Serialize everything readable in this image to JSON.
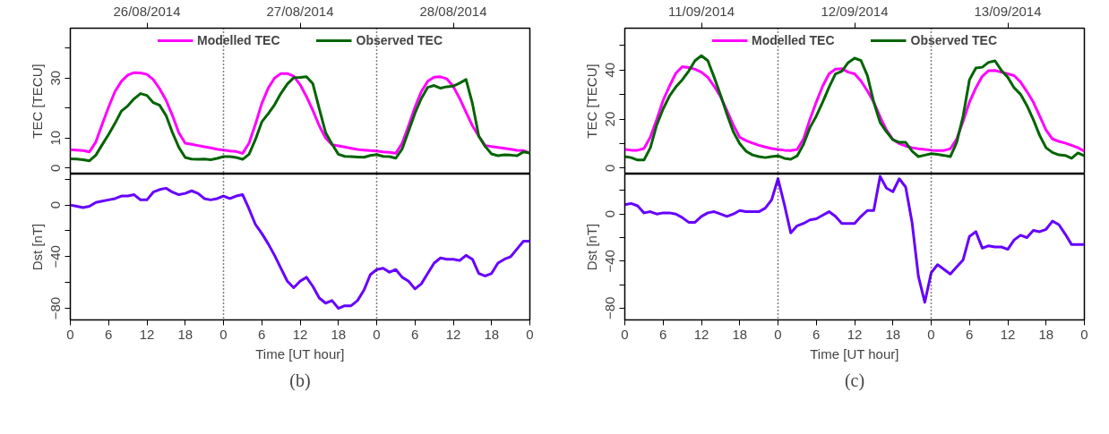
{
  "chart_data": [
    {
      "type": "line",
      "ylabel": "TEC [TECU]",
      "xlim": [
        "2014-08-26T00:00",
        "2014-08-29T00:00"
      ],
      "ylim": [
        -2,
        46.6
      ],
      "x2lim": [
        "2014-08-26T00:00",
        "2014-08-29T00:00"
      ],
      "x2ticks": [
        {
          "value": "2014-08-26T12:00",
          "label": "26/08/2014"
        },
        {
          "value": "2014-08-27T12:00",
          "label": "27/08/2014"
        },
        {
          "value": "2014-08-28T12:00",
          "label": "28/08/2014"
        }
      ],
      "yticks": [
        0,
        10,
        {
          "value": 20,
          "label": null
        },
        30,
        {
          "value": 40,
          "label": null
        }
      ],
      "tick_labels": "y",
      "legend": "top",
      "x": [
        "2014-08-26T00:00",
        "2014-08-26T01:00",
        "2014-08-26T02:00",
        "2014-08-26T03:00",
        "2014-08-26T04:00",
        "2014-08-26T05:00",
        "2014-08-26T06:00",
        "2014-08-26T07:00",
        "2014-08-26T08:00",
        "2014-08-26T09:00",
        "2014-08-26T10:00",
        "2014-08-26T11:00",
        "2014-08-26T12:00",
        "2014-08-26T13:00",
        "2014-08-26T14:00",
        "2014-08-26T15:00",
        "2014-08-26T16:00",
        "2014-08-26T17:00",
        "2014-08-26T18:00",
        "2014-08-26T19:00",
        "2014-08-26T20:00",
        "2014-08-26T21:00",
        "2014-08-26T22:00",
        "2014-08-26T23:00",
        "2014-08-27T00:00",
        "2014-08-27T01:00",
        "2014-08-27T02:00",
        "2014-08-27T03:00",
        "2014-08-27T04:00",
        "2014-08-27T05:00",
        "2014-08-27T06:00",
        "2014-08-27T07:00",
        "2014-08-27T08:00",
        "2014-08-27T09:00",
        "2014-08-27T10:00",
        "2014-08-27T11:00",
        "2014-08-27T12:00",
        "2014-08-27T13:00",
        "2014-08-27T14:00",
        "2014-08-27T15:00",
        "2014-08-27T16:00",
        "2014-08-27T17:00",
        "2014-08-27T18:00",
        "2014-08-27T19:00",
        "2014-08-27T20:00",
        "2014-08-27T21:00",
        "2014-08-27T22:00",
        "2014-08-27T23:00",
        "2014-08-28T00:00",
        "2014-08-28T01:00",
        "2014-08-28T02:00",
        "2014-08-28T03:00",
        "2014-08-28T04:00",
        "2014-08-28T05:00",
        "2014-08-28T06:00",
        "2014-08-28T07:00",
        "2014-08-28T08:00",
        "2014-08-28T09:00",
        "2014-08-28T10:00",
        "2014-08-28T11:00",
        "2014-08-28T12:00",
        "2014-08-28T13:00",
        "2014-08-28T14:00",
        "2014-08-28T15:00",
        "2014-08-28T16:00",
        "2014-08-28T17:00",
        "2014-08-28T18:00",
        "2014-08-28T19:00",
        "2014-08-28T20:00",
        "2014-08-28T21:00",
        "2014-08-28T22:00",
        "2014-08-28T23:00",
        "2014-08-29T00:00"
      ],
      "ref_lines": [
        {
          "axis": "x",
          "value": "2014-08-27T00:00",
          "line_style": "dotted"
        },
        {
          "axis": "x",
          "value": "2014-08-28T00:00",
          "line_style": "dotted"
        }
      ],
      "series": [
        {
          "name": "Modelled TEC",
          "color": "#ff00ff",
          "values": [
            6.1,
            6.0,
            5.8,
            5.4,
            8.7,
            14.6,
            20.3,
            25.5,
            28.9,
            31,
            31.8,
            31.7,
            31.2,
            29.5,
            26.4,
            22.6,
            17.5,
            11.8,
            8.3,
            7.9,
            7.5,
            7.1,
            6.7,
            6.3,
            6.0,
            5.7,
            5.5,
            4.9,
            8.3,
            14.6,
            21.5,
            26.6,
            30,
            31.5,
            31.5,
            30.6,
            27.8,
            23.8,
            19.2,
            14.1,
            10,
            7.8,
            7.4,
            7.0,
            6.6,
            6.2,
            6.0,
            5.8,
            5.7,
            5.4,
            5.2,
            4.9,
            8.3,
            14.1,
            20.3,
            25.5,
            28.9,
            30.3,
            30.4,
            29.7,
            27.2,
            23.2,
            18.6,
            14.1,
            10.6,
            7.5,
            7.2,
            6.9,
            6.6,
            6.3,
            5.9,
            5.8,
            5.0
          ]
        },
        {
          "name": "Observed TEC",
          "color": "#006400",
          "values": [
            3.1,
            3.0,
            2.8,
            2.4,
            4.3,
            7.8,
            11.2,
            14.9,
            19,
            20.7,
            23.1,
            24.8,
            24.2,
            21.8,
            20.9,
            17.5,
            11.8,
            6.9,
            3.5,
            3.0,
            2.9,
            3.0,
            2.8,
            3.2,
            3.8,
            3.8,
            3.5,
            2.9,
            4.6,
            9.5,
            15.4,
            18.1,
            21.1,
            24.9,
            28,
            30.1,
            30.2,
            30.4,
            28.1,
            19.8,
            11.8,
            8.0,
            4.6,
            3.9,
            3.8,
            3.7,
            3.6,
            4.2,
            4.5,
            3.9,
            3.8,
            3.3,
            6.4,
            12.3,
            18.3,
            23.2,
            26.9,
            27.5,
            26.6,
            27.1,
            27.3,
            28.3,
            29.5,
            21.5,
            10.6,
            7.2,
            4.7,
            4.1,
            4.4,
            4.3,
            4.1,
            5.4,
            5.0
          ]
        }
      ]
    },
    {
      "type": "line",
      "ylabel": "Dst [nT]",
      "xlabel": "Time [UT hour]",
      "xlim": [
        "2014-08-26T00:00",
        "2014-08-29T00:00"
      ],
      "ylim": [
        -89,
        24
      ],
      "annotations": [
        "(b)"
      ],
      "xticks": [
        {
          "value": "2014-08-26T00:00",
          "label": "0"
        },
        {
          "value": "2014-08-26T06:00",
          "label": "6"
        },
        {
          "value": "2014-08-26T12:00",
          "label": "12"
        },
        {
          "value": "2014-08-26T18:00",
          "label": "18"
        },
        {
          "value": "2014-08-27T00:00",
          "label": "0"
        },
        {
          "value": "2014-08-27T06:00",
          "label": "6"
        },
        {
          "value": "2014-08-27T12:00",
          "label": "12"
        },
        {
          "value": "2014-08-27T18:00",
          "label": "18"
        },
        {
          "value": "2014-08-28T00:00",
          "label": "0"
        },
        {
          "value": "2014-08-28T06:00",
          "label": "6"
        },
        {
          "value": "2014-08-28T12:00",
          "label": "12"
        },
        {
          "value": "2014-08-28T18:00",
          "label": "18"
        },
        {
          "value": "2014-08-29T00:00",
          "label": "0"
        }
      ],
      "yticks": [
        -80,
        {
          "value": -60,
          "label": null
        },
        -40,
        {
          "value": -20,
          "label": null
        },
        0,
        {
          "value": 20,
          "label": null
        }
      ],
      "x": [
        "2014-08-26T00:00",
        "2014-08-26T01:00",
        "2014-08-26T02:00",
        "2014-08-26T03:00",
        "2014-08-26T04:00",
        "2014-08-26T05:00",
        "2014-08-26T06:00",
        "2014-08-26T07:00",
        "2014-08-26T08:00",
        "2014-08-26T09:00",
        "2014-08-26T10:00",
        "2014-08-26T11:00",
        "2014-08-26T12:00",
        "2014-08-26T13:00",
        "2014-08-26T14:00",
        "2014-08-26T15:00",
        "2014-08-26T16:00",
        "2014-08-26T17:00",
        "2014-08-26T18:00",
        "2014-08-26T19:00",
        "2014-08-26T20:00",
        "2014-08-26T21:00",
        "2014-08-26T22:00",
        "2014-08-26T23:00",
        "2014-08-27T00:00",
        "2014-08-27T01:00",
        "2014-08-27T02:00",
        "2014-08-27T03:00",
        "2014-08-27T04:00",
        "2014-08-27T05:00",
        "2014-08-27T06:00",
        "2014-08-27T07:00",
        "2014-08-27T08:00",
        "2014-08-27T09:00",
        "2014-08-27T10:00",
        "2014-08-27T11:00",
        "2014-08-27T12:00",
        "2014-08-27T13:00",
        "2014-08-27T14:00",
        "2014-08-27T15:00",
        "2014-08-27T16:00",
        "2014-08-27T17:00",
        "2014-08-27T18:00",
        "2014-08-27T19:00",
        "2014-08-27T20:00",
        "2014-08-27T21:00",
        "2014-08-27T22:00",
        "2014-08-27T23:00",
        "2014-08-28T00:00",
        "2014-08-28T01:00",
        "2014-08-28T02:00",
        "2014-08-28T03:00",
        "2014-08-28T04:00",
        "2014-08-28T05:00",
        "2014-08-28T06:00",
        "2014-08-28T07:00",
        "2014-08-28T08:00",
        "2014-08-28T09:00",
        "2014-08-28T10:00",
        "2014-08-28T11:00",
        "2014-08-28T12:00",
        "2014-08-28T13:00",
        "2014-08-28T14:00",
        "2014-08-28T15:00",
        "2014-08-28T16:00",
        "2014-08-28T17:00",
        "2014-08-28T18:00",
        "2014-08-28T19:00",
        "2014-08-28T20:00",
        "2014-08-28T21:00",
        "2014-08-28T22:00",
        "2014-08-28T23:00",
        "2014-08-29T00:00"
      ],
      "ref_lines": [
        {
          "axis": "x",
          "value": "2014-08-27T00:00",
          "line_style": "dotted"
        },
        {
          "axis": "x",
          "value": "2014-08-28T00:00",
          "line_style": "dotted"
        }
      ],
      "series": [
        {
          "color": "#6600ff",
          "values": [
            0,
            -1,
            -2,
            -1,
            2,
            3,
            4,
            5,
            7,
            7,
            8,
            4,
            4,
            10,
            12,
            13,
            10,
            8,
            9,
            11,
            9,
            5,
            4,
            5,
            7,
            5,
            7,
            8,
            -3,
            -15,
            -22,
            -30,
            -39,
            -49,
            -59,
            -64,
            -59,
            -56,
            -63,
            -72,
            -76,
            -74,
            -80,
            -78,
            -78,
            -74,
            -66,
            -54,
            -50,
            -49,
            -52,
            -50,
            -56,
            -59,
            -65,
            -61,
            -53,
            -45,
            -41,
            -42,
            -42,
            -43,
            -39,
            -42,
            -53,
            -55,
            -53,
            -45,
            -42,
            -40,
            -34,
            -28,
            -28
          ]
        }
      ]
    },
    {
      "type": "line",
      "ylabel": "TEC [TECU]",
      "xlim": [
        "2014-09-11T00:00",
        "2014-09-14T00:00"
      ],
      "ylim": [
        -2.4,
        57
      ],
      "x2lim": [
        "2014-09-11T00:00",
        "2014-09-14T00:00"
      ],
      "x2ticks": [
        {
          "value": "2014-09-11T12:00",
          "label": "11/09/2014"
        },
        {
          "value": "2014-09-12T12:00",
          "label": "12/09/2014"
        },
        {
          "value": "2014-09-13T12:00",
          "label": "13/09/2014"
        }
      ],
      "yticks": [
        0,
        {
          "value": 10,
          "label": null
        },
        20,
        {
          "value": 30,
          "label": null
        },
        40,
        {
          "value": 50,
          "label": null
        }
      ],
      "tick_labels": "y",
      "legend": "top",
      "x": [
        "2014-09-11T00:00",
        "2014-09-11T01:00",
        "2014-09-11T02:00",
        "2014-09-11T03:00",
        "2014-09-11T04:00",
        "2014-09-11T05:00",
        "2014-09-11T06:00",
        "2014-09-11T07:00",
        "2014-09-11T08:00",
        "2014-09-11T09:00",
        "2014-09-11T10:00",
        "2014-09-11T11:00",
        "2014-09-11T12:00",
        "2014-09-11T13:00",
        "2014-09-11T14:00",
        "2014-09-11T15:00",
        "2014-09-11T16:00",
        "2014-09-11T17:00",
        "2014-09-11T18:00",
        "2014-09-11T19:00",
        "2014-09-11T20:00",
        "2014-09-11T21:00",
        "2014-09-11T22:00",
        "2014-09-11T23:00",
        "2014-09-12T00:00",
        "2014-09-12T01:00",
        "2014-09-12T02:00",
        "2014-09-12T03:00",
        "2014-09-12T04:00",
        "2014-09-12T05:00",
        "2014-09-12T06:00",
        "2014-09-12T07:00",
        "2014-09-12T08:00",
        "2014-09-12T09:00",
        "2014-09-12T10:00",
        "2014-09-12T11:00",
        "2014-09-12T12:00",
        "2014-09-12T13:00",
        "2014-09-12T14:00",
        "2014-09-12T15:00",
        "2014-09-12T16:00",
        "2014-09-12T17:00",
        "2014-09-12T18:00",
        "2014-09-12T19:00",
        "2014-09-12T20:00",
        "2014-09-12T21:00",
        "2014-09-12T22:00",
        "2014-09-12T23:00",
        "2014-09-13T00:00",
        "2014-09-13T01:00",
        "2014-09-13T02:00",
        "2014-09-13T03:00",
        "2014-09-13T04:00",
        "2014-09-13T05:00",
        "2014-09-13T06:00",
        "2014-09-13T07:00",
        "2014-09-13T08:00",
        "2014-09-13T09:00",
        "2014-09-13T10:00",
        "2014-09-13T11:00",
        "2014-09-13T12:00",
        "2014-09-13T13:00",
        "2014-09-13T14:00",
        "2014-09-13T15:00",
        "2014-09-13T16:00",
        "2014-09-13T17:00",
        "2014-09-13T18:00",
        "2014-09-13T19:00",
        "2014-09-13T20:00",
        "2014-09-13T21:00",
        "2014-09-13T22:00",
        "2014-09-13T23:00",
        "2014-09-14T00:00"
      ],
      "ref_lines": [
        {
          "axis": "x",
          "value": "2014-09-12T00:00",
          "line_style": "dotted"
        },
        {
          "axis": "x",
          "value": "2014-09-13T00:00",
          "line_style": "dotted"
        }
      ],
      "series": [
        {
          "name": "Modelled TEC",
          "color": "#ff00ff",
          "values": [
            7.6,
            7.3,
            7.3,
            8.0,
            12.6,
            19.8,
            27.6,
            33.4,
            38.7,
            41.3,
            41,
            40.3,
            39.1,
            37,
            33.4,
            29.1,
            23.4,
            17.6,
            12.6,
            11.2,
            10.2,
            9.3,
            8.6,
            8.0,
            7.6,
            7.3,
            7.2,
            7.6,
            11.9,
            19.8,
            26.9,
            33.4,
            38.4,
            40.3,
            40.5,
            39.1,
            38.4,
            35.5,
            31.5,
            26.9,
            20.9,
            15.5,
            11.6,
            10,
            9,
            8.3,
            7.9,
            7.6,
            7.3,
            7.2,
            7.2,
            7.9,
            11.9,
            19.1,
            26.9,
            32.7,
            37.4,
            39.7,
            39.8,
            39.1,
            38.4,
            37.7,
            35.1,
            31.2,
            26.9,
            21.2,
            15.5,
            11.9,
            10.9,
            10.2,
            9.3,
            8.3,
            6.9
          ]
        },
        {
          "name": "Observed TEC",
          "color": "#006400",
          "values": [
            4.7,
            4.3,
            3.3,
            3.3,
            8.3,
            17.6,
            24.1,
            29.4,
            33.1,
            36,
            39.5,
            43.8,
            45.8,
            43.8,
            37,
            29.8,
            21.9,
            14.8,
            10,
            6.9,
            5.4,
            4.7,
            4.3,
            4.7,
            5.0,
            4.0,
            3.6,
            5.0,
            9.7,
            16.5,
            21.2,
            26.9,
            33,
            38.4,
            39.5,
            43,
            44.8,
            43.8,
            37.7,
            26.9,
            18.6,
            14.8,
            11.6,
            10.5,
            10.5,
            6.9,
            4.7,
            5.3,
            5.9,
            5.6,
            5.2,
            4.7,
            10.5,
            21.2,
            36,
            40.8,
            41.1,
            43.1,
            43.7,
            39.8,
            37,
            32.7,
            30.1,
            25.5,
            19.8,
            13.3,
            8.3,
            6.4,
            5.4,
            5.2,
            4.0,
            6.2,
            5.0
          ]
        }
      ]
    },
    {
      "type": "line",
      "ylabel": "Dst [nT]",
      "xlabel": "Time [UT hour]",
      "xlim": [
        "2014-09-11T00:00",
        "2014-09-14T00:00"
      ],
      "ylim": [
        -90,
        34
      ],
      "annotations": [
        "(c)"
      ],
      "xticks": [
        {
          "value": "2014-09-11T00:00",
          "label": "0"
        },
        {
          "value": "2014-09-11T06:00",
          "label": "6"
        },
        {
          "value": "2014-09-11T12:00",
          "label": "12"
        },
        {
          "value": "2014-09-11T18:00",
          "label": "18"
        },
        {
          "value": "2014-09-12T00:00",
          "label": "0"
        },
        {
          "value": "2014-09-12T06:00",
          "label": "6"
        },
        {
          "value": "2014-09-12T12:00",
          "label": "12"
        },
        {
          "value": "2014-09-12T18:00",
          "label": "18"
        },
        {
          "value": "2014-09-13T00:00",
          "label": "0"
        },
        {
          "value": "2014-09-13T06:00",
          "label": "6"
        },
        {
          "value": "2014-09-13T12:00",
          "label": "12"
        },
        {
          "value": "2014-09-13T18:00",
          "label": "18"
        },
        {
          "value": "2014-09-14T00:00",
          "label": "0"
        }
      ],
      "yticks": [
        -80,
        {
          "value": -60,
          "label": null
        },
        -40,
        {
          "value": -20,
          "label": null
        },
        0,
        {
          "value": 20,
          "label": null
        }
      ],
      "x": [
        "2014-09-11T00:00",
        "2014-09-11T01:00",
        "2014-09-11T02:00",
        "2014-09-11T03:00",
        "2014-09-11T04:00",
        "2014-09-11T05:00",
        "2014-09-11T06:00",
        "2014-09-11T07:00",
        "2014-09-11T08:00",
        "2014-09-11T09:00",
        "2014-09-11T10:00",
        "2014-09-11T11:00",
        "2014-09-11T12:00",
        "2014-09-11T13:00",
        "2014-09-11T14:00",
        "2014-09-11T15:00",
        "2014-09-11T16:00",
        "2014-09-11T17:00",
        "2014-09-11T18:00",
        "2014-09-11T19:00",
        "2014-09-11T20:00",
        "2014-09-11T21:00",
        "2014-09-11T22:00",
        "2014-09-11T23:00",
        "2014-09-12T00:00",
        "2014-09-12T01:00",
        "2014-09-12T02:00",
        "2014-09-12T03:00",
        "2014-09-12T04:00",
        "2014-09-12T05:00",
        "2014-09-12T06:00",
        "2014-09-12T07:00",
        "2014-09-12T08:00",
        "2014-09-12T09:00",
        "2014-09-12T10:00",
        "2014-09-12T11:00",
        "2014-09-12T12:00",
        "2014-09-12T13:00",
        "2014-09-12T14:00",
        "2014-09-12T15:00",
        "2014-09-12T16:00",
        "2014-09-12T17:00",
        "2014-09-12T18:00",
        "2014-09-12T19:00",
        "2014-09-12T20:00",
        "2014-09-12T21:00",
        "2014-09-12T22:00",
        "2014-09-12T23:00",
        "2014-09-13T00:00",
        "2014-09-13T01:00",
        "2014-09-13T02:00",
        "2014-09-13T03:00",
        "2014-09-13T04:00",
        "2014-09-13T05:00",
        "2014-09-13T06:00",
        "2014-09-13T07:00",
        "2014-09-13T08:00",
        "2014-09-13T09:00",
        "2014-09-13T10:00",
        "2014-09-13T11:00",
        "2014-09-13T12:00",
        "2014-09-13T13:00",
        "2014-09-13T14:00",
        "2014-09-13T15:00",
        "2014-09-13T16:00",
        "2014-09-13T17:00",
        "2014-09-13T18:00",
        "2014-09-13T19:00",
        "2014-09-13T20:00",
        "2014-09-13T21:00",
        "2014-09-13T22:00",
        "2014-09-13T23:00",
        "2014-09-14T00:00"
      ],
      "ref_lines": [
        {
          "axis": "x",
          "value": "2014-09-12T00:00",
          "line_style": "dotted"
        },
        {
          "axis": "x",
          "value": "2014-09-13T00:00",
          "line_style": "dotted"
        }
      ],
      "series": [
        {
          "color": "#6600ff",
          "values": [
            8,
            9,
            7,
            1,
            2,
            0,
            1,
            1,
            0,
            -3,
            -7,
            -7,
            -2,
            1,
            2,
            0,
            -2,
            0,
            3,
            2,
            2,
            2,
            5,
            12,
            30,
            8,
            -16,
            -10,
            -8,
            -5,
            -4,
            -1,
            2,
            -2,
            -8,
            -8,
            -8,
            -2,
            3,
            3,
            32,
            22,
            19,
            30,
            23,
            -7,
            -53,
            -75,
            -50,
            -43,
            -47,
            -51,
            -45,
            -39,
            -19,
            -15,
            -29,
            -27,
            -28,
            -28,
            -30,
            -22,
            -18,
            -20,
            -14,
            -15,
            -13,
            -6,
            -9,
            -17,
            -26,
            -26,
            -26
          ]
        }
      ]
    }
  ]
}
